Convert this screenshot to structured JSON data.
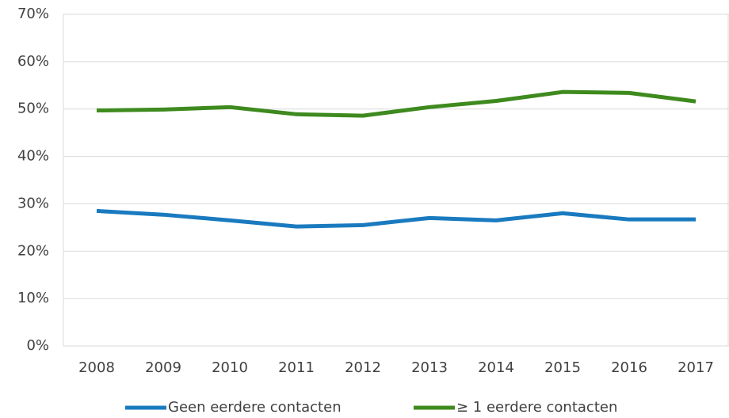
{
  "chart_data": {
    "type": "line",
    "categories": [
      "2008",
      "2009",
      "2010",
      "2011",
      "2012",
      "2013",
      "2014",
      "2015",
      "2016",
      "2017"
    ],
    "series": [
      {
        "name": "Geen eerdere contacten",
        "color": "#1a7abf",
        "values": [
          28.5,
          27.7,
          26.5,
          25.2,
          25.5,
          27.0,
          26.5,
          28.0,
          26.7,
          26.7
        ]
      },
      {
        "name": "≥ 1 eerdere contacten",
        "color": "#3e8a1e",
        "values": [
          49.7,
          49.9,
          50.4,
          48.9,
          48.6,
          50.4,
          51.7,
          53.6,
          53.4,
          51.6
        ]
      }
    ],
    "ylim": [
      0,
      70
    ],
    "yticks": [
      {
        "value": 0,
        "label": "0%"
      },
      {
        "value": 10,
        "label": "10%"
      },
      {
        "value": 20,
        "label": "20%"
      },
      {
        "value": 30,
        "label": "30%"
      },
      {
        "value": 40,
        "label": "40%"
      },
      {
        "value": 50,
        "label": "50%"
      },
      {
        "value": 60,
        "label": "60%"
      },
      {
        "value": 70,
        "label": "70%"
      }
    ],
    "grid": true,
    "legend": "bottom"
  }
}
